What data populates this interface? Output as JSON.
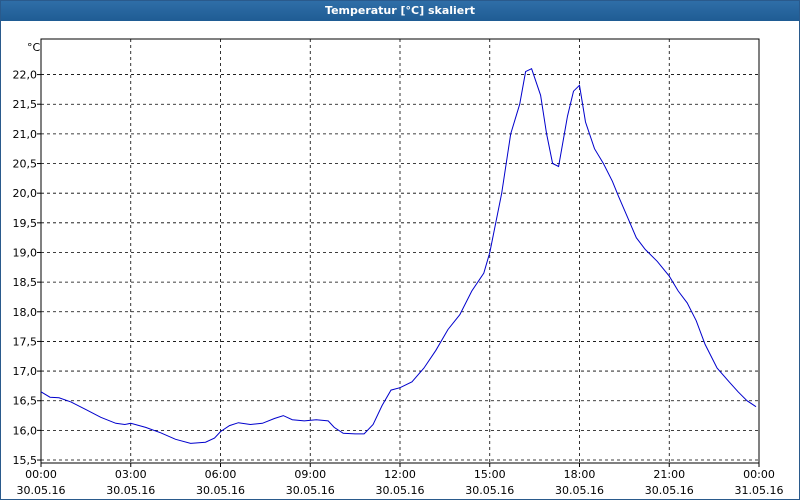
{
  "chart_data": {
    "type": "line",
    "title": "Temperatur [°C] skaliert",
    "ylabel": "°C",
    "ylim": [
      15.45,
      22.6
    ],
    "xlim": [
      0,
      24
    ],
    "grid": true,
    "y_ticks": [
      "15,5",
      "16,0",
      "16,5",
      "17,0",
      "17,5",
      "18,0",
      "18,5",
      "19,0",
      "19,5",
      "20,0",
      "20,5",
      "21,0",
      "21,5",
      "22,0"
    ],
    "x_ticks": [
      {
        "time": "00:00",
        "date": "30.05.16"
      },
      {
        "time": "03:00",
        "date": "30.05.16"
      },
      {
        "time": "06:00",
        "date": "30.05.16"
      },
      {
        "time": "09:00",
        "date": "30.05.16"
      },
      {
        "time": "12:00",
        "date": "30.05.16"
      },
      {
        "time": "15:00",
        "date": "30.05.16"
      },
      {
        "time": "18:00",
        "date": "30.05.16"
      },
      {
        "time": "21:00",
        "date": "30.05.16"
      },
      {
        "time": "00:00",
        "date": "31.05.16"
      }
    ],
    "series": [
      {
        "color": "#0000cc",
        "x": [
          0,
          0.3,
          0.6,
          1.0,
          1.5,
          2.0,
          2.5,
          2.8,
          3.0,
          3.5,
          4.0,
          4.5,
          5.0,
          5.5,
          5.8,
          6.0,
          6.3,
          6.6,
          7.0,
          7.4,
          7.8,
          8.1,
          8.4,
          8.8,
          9.2,
          9.6,
          9.8,
          10.1,
          10.5,
          10.8,
          11.1,
          11.4,
          11.7,
          12.0,
          12.4,
          12.8,
          13.2,
          13.6,
          14.0,
          14.4,
          14.8,
          15.0,
          15.4,
          15.7,
          16.0,
          16.2,
          16.4,
          16.7,
          16.9,
          17.1,
          17.3,
          17.6,
          17.8,
          18.0,
          18.2,
          18.5,
          18.8,
          19.1,
          19.3,
          19.6,
          19.9,
          20.2,
          20.6,
          21.0,
          21.3,
          21.6,
          21.9,
          22.2,
          22.6,
          23.0,
          23.3,
          23.6,
          23.9
        ],
        "values": [
          16.65,
          16.56,
          16.55,
          16.48,
          16.35,
          16.22,
          16.12,
          16.1,
          16.12,
          16.05,
          15.96,
          15.85,
          15.78,
          15.8,
          15.87,
          15.98,
          16.08,
          16.13,
          16.1,
          16.12,
          16.2,
          16.25,
          16.18,
          16.16,
          16.18,
          16.16,
          16.05,
          15.95,
          15.94,
          15.94,
          16.1,
          16.42,
          16.68,
          16.72,
          16.82,
          17.05,
          17.35,
          17.7,
          17.95,
          18.35,
          18.65,
          19.0,
          20.0,
          21.0,
          21.5,
          22.05,
          22.1,
          21.65,
          21.0,
          20.5,
          20.45,
          21.3,
          21.72,
          21.82,
          21.2,
          20.75,
          20.5,
          20.2,
          19.95,
          19.6,
          19.25,
          19.05,
          18.85,
          18.6,
          18.35,
          18.15,
          17.85,
          17.45,
          17.05,
          16.82,
          16.65,
          16.5,
          16.4
        ]
      }
    ]
  }
}
